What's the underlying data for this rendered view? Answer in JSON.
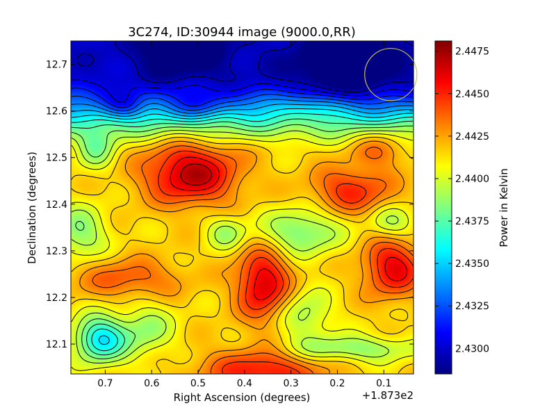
{
  "chart_data": {
    "type": "heatmap",
    "title": "3C274, ID:30944 image (9000.0,RR)",
    "xlabel": "Right Ascension (degrees)",
    "ylabel": "Declination (degrees)",
    "x_offset_label": "+1.873e2",
    "xlim": [
      0.774,
      0.036
    ],
    "ylim": [
      12.036,
      12.75
    ],
    "x_ticks": [
      {
        "value": 0.7,
        "label": "0.7"
      },
      {
        "value": 0.6,
        "label": "0.6"
      },
      {
        "value": 0.5,
        "label": "0.5"
      },
      {
        "value": 0.4,
        "label": "0.4"
      },
      {
        "value": 0.3,
        "label": "0.3"
      },
      {
        "value": 0.2,
        "label": "0.2"
      },
      {
        "value": 0.1,
        "label": "0.1"
      }
    ],
    "y_ticks": [
      {
        "value": 12.1,
        "label": "12.1"
      },
      {
        "value": 12.2,
        "label": "12.2"
      },
      {
        "value": 12.3,
        "label": "12.3"
      },
      {
        "value": 12.4,
        "label": "12.4"
      },
      {
        "value": 12.5,
        "label": "12.5"
      },
      {
        "value": 12.6,
        "label": "12.6"
      },
      {
        "value": 12.7,
        "label": "12.7"
      }
    ],
    "colorbar": {
      "label": "Power in Kelvin",
      "range": [
        2.4285,
        2.4481
      ],
      "colormap": "jet",
      "ticks": [
        {
          "value": 2.43,
          "label": "2.4300"
        },
        {
          "value": 2.4325,
          "label": "2.4325"
        },
        {
          "value": 2.435,
          "label": "2.4350"
        },
        {
          "value": 2.4375,
          "label": "2.4375"
        },
        {
          "value": 2.44,
          "label": "2.4400"
        },
        {
          "value": 2.4425,
          "label": "2.4425"
        },
        {
          "value": 2.445,
          "label": "2.4450"
        },
        {
          "value": 2.4475,
          "label": "2.4475"
        }
      ]
    },
    "field": {
      "background": 2.4415,
      "north_gradient": {
        "dec_start": 12.5,
        "dec_end": 12.68,
        "drop": 0.0115
      },
      "features": [
        {
          "ra": 0.515,
          "dec": 12.465,
          "amplitude": 0.0055,
          "sigma_ra": 0.07,
          "sigma_dec": 0.045
        },
        {
          "ra": 0.36,
          "dec": 12.23,
          "amplitude": 0.005,
          "sigma_ra": 0.04,
          "sigma_dec": 0.055
        },
        {
          "ra": 0.17,
          "dec": 12.43,
          "amplitude": 0.0035,
          "sigma_ra": 0.06,
          "sigma_dec": 0.035
        },
        {
          "ra": 0.08,
          "dec": 12.265,
          "amplitude": 0.0045,
          "sigma_ra": 0.045,
          "sigma_dec": 0.045
        },
        {
          "ra": 0.65,
          "dec": 12.24,
          "amplitude": 0.0025,
          "sigma_ra": 0.08,
          "sigma_dec": 0.03
        },
        {
          "ra": 0.36,
          "dec": 12.04,
          "amplitude": 0.004,
          "sigma_ra": 0.09,
          "sigma_dec": 0.035
        },
        {
          "ra": 0.11,
          "dec": 12.52,
          "amplitude": 0.002,
          "sigma_ra": 0.04,
          "sigma_dec": 0.03
        },
        {
          "ra": 0.71,
          "dec": 12.11,
          "amplitude": -0.006,
          "sigma_ra": 0.04,
          "sigma_dec": 0.035
        },
        {
          "ra": 0.28,
          "dec": 12.34,
          "amplitude": -0.0035,
          "sigma_ra": 0.06,
          "sigma_dec": 0.035
        },
        {
          "ra": 0.755,
          "dec": 12.34,
          "amplitude": -0.003,
          "sigma_ra": 0.04,
          "sigma_dec": 0.04
        },
        {
          "ra": 0.08,
          "dec": 12.36,
          "amplitude": -0.0025,
          "sigma_ra": 0.035,
          "sigma_dec": 0.025
        },
        {
          "ra": 0.44,
          "dec": 12.34,
          "amplitude": -0.0025,
          "sigma_ra": 0.03,
          "sigma_dec": 0.025
        },
        {
          "ra": 0.17,
          "dec": 12.09,
          "amplitude": -0.003,
          "sigma_ra": 0.1,
          "sigma_dec": 0.02
        },
        {
          "ra": 0.61,
          "dec": 12.13,
          "amplitude": -0.0025,
          "sigma_ra": 0.04,
          "sigma_dec": 0.04
        },
        {
          "ra": 0.27,
          "dec": 12.16,
          "amplitude": -0.0025,
          "sigma_ra": 0.04,
          "sigma_dec": 0.04
        },
        {
          "ra": 0.72,
          "dec": 12.52,
          "amplitude": -0.003,
          "sigma_ra": 0.03,
          "sigma_dec": 0.03
        },
        {
          "ra": 0.18,
          "dec": 12.695,
          "amplitude": -0.0035,
          "sigma_ra": 0.08,
          "sigma_dec": 0.05
        },
        {
          "ra": 0.53,
          "dec": 12.73,
          "amplitude": -0.003,
          "sigma_ra": 0.07,
          "sigma_dec": 0.04
        },
        {
          "ra": 0.66,
          "dec": 12.61,
          "amplitude": -0.0025,
          "sigma_ra": 0.03,
          "sigma_dec": 0.02
        },
        {
          "ra": 0.5,
          "dec": 12.61,
          "amplitude": -0.002,
          "sigma_ra": 0.04,
          "sigma_dec": 0.02
        },
        {
          "ra": 0.27,
          "dec": 12.61,
          "amplitude": 0.002,
          "sigma_ra": 0.05,
          "sigma_dec": 0.025
        }
      ],
      "contour_levels": [
        2.4295,
        2.4305,
        2.4315,
        2.4325,
        2.4335,
        2.4345,
        2.4355,
        2.4365,
        2.4375,
        2.4385,
        2.4395,
        2.4405,
        2.4415,
        2.4425,
        2.4435,
        2.4445,
        2.4455,
        2.4465,
        2.4475
      ]
    },
    "beam": {
      "ra": 0.085,
      "dec": 12.678,
      "radius_deg": 0.056,
      "color": "#c8c060"
    },
    "contour_color": "#000000"
  }
}
